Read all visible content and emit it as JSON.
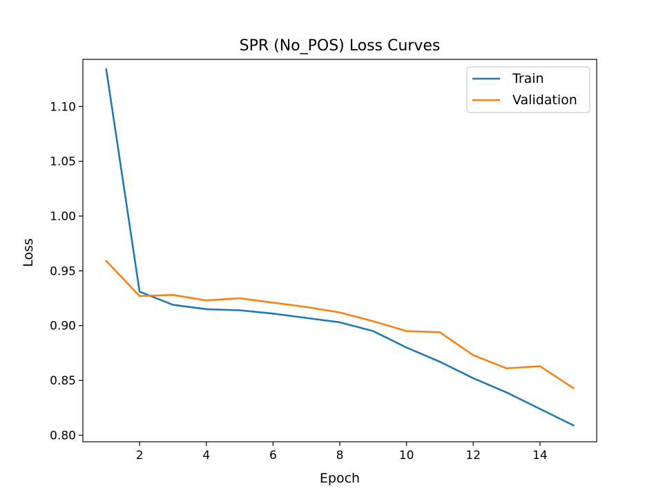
{
  "chart_data": {
    "type": "line",
    "title": "SPR (No_POS) Loss Curves",
    "xlabel": "Epoch",
    "ylabel": "Loss",
    "x": [
      1,
      2,
      3,
      4,
      5,
      6,
      7,
      8,
      9,
      10,
      11,
      12,
      13,
      14,
      15
    ],
    "xlim": [
      0.3,
      15.7
    ],
    "ylim": [
      0.794,
      1.143
    ],
    "xticks": [
      2,
      4,
      6,
      8,
      10,
      12,
      14
    ],
    "xtick_labels": [
      "2",
      "4",
      "6",
      "8",
      "10",
      "12",
      "14"
    ],
    "yticks": [
      0.8,
      0.85,
      0.9,
      0.95,
      1.0,
      1.05,
      1.1
    ],
    "ytick_labels": [
      "0.80",
      "0.85",
      "0.90",
      "0.95",
      "1.00",
      "1.05",
      "1.10"
    ],
    "grid": false,
    "legend_position": "top-right",
    "series": [
      {
        "name": "Train",
        "color": "#1f77b4",
        "values": [
          1.134,
          0.931,
          0.919,
          0.915,
          0.914,
          0.911,
          0.907,
          0.903,
          0.895,
          0.88,
          0.867,
          0.852,
          0.839,
          0.824,
          0.809
        ]
      },
      {
        "name": "Validation",
        "color": "#ff7f0e",
        "values": [
          0.959,
          0.927,
          0.928,
          0.923,
          0.925,
          0.921,
          0.917,
          0.912,
          0.904,
          0.895,
          0.894,
          0.873,
          0.861,
          0.863,
          0.843
        ]
      }
    ]
  }
}
